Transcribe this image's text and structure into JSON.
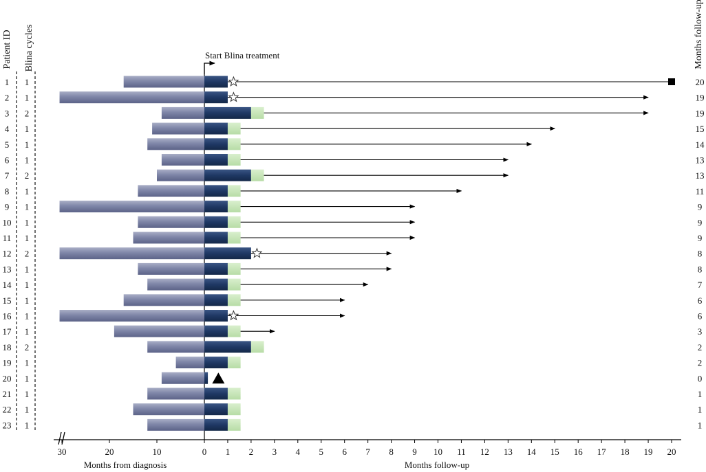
{
  "chart_data": {
    "type": "swimmer",
    "headers": {
      "patient_id": "Patient ID",
      "blina_cycles": "Blina cycles",
      "months_follow_up": "Months follow-up",
      "start_label": "Start Blina treatment"
    },
    "xlabel_left": "Months from diagnosis",
    "xlabel_right": "Months follow-up",
    "left_ticks": [
      "30",
      "20",
      "10",
      "0"
    ],
    "right_ticks": [
      "1",
      "2",
      "3",
      "4",
      "5",
      "6",
      "7",
      "8",
      "9",
      "10",
      "11",
      "12",
      "13",
      "14",
      "15",
      "16",
      "17",
      "18",
      "19",
      "20"
    ],
    "axis_break": "//",
    "xlim_left": [
      30,
      0
    ],
    "xlim_right": [
      0,
      20
    ],
    "series_colors": {
      "pre_treatment": "#7f86a8",
      "blina_treatment": "#1f3864",
      "post_treatment": "#c6e4b8",
      "follow_up": "#000000"
    },
    "patients": [
      {
        "id": "1",
        "cycles": "1",
        "diag": 17,
        "blina": 1,
        "post": 0,
        "marker_x": 1.25,
        "marker": "star",
        "follow_end": 20,
        "end": "square",
        "follow_label": "20"
      },
      {
        "id": "2",
        "cycles": "1",
        "diag": 30.5,
        "blina": 1,
        "post": 0,
        "marker_x": 1.25,
        "marker": "star",
        "follow_end": 19,
        "end": "arrow",
        "follow_label": "19"
      },
      {
        "id": "3",
        "cycles": "2",
        "diag": 9,
        "blina": 2,
        "post": 0.55,
        "marker_x": null,
        "marker": "",
        "follow_end": 19,
        "end": "arrow",
        "follow_label": "19"
      },
      {
        "id": "4",
        "cycles": "1",
        "diag": 11,
        "blina": 1,
        "post": 0.55,
        "marker_x": null,
        "marker": "",
        "follow_end": 15,
        "end": "arrow",
        "follow_label": "15"
      },
      {
        "id": "5",
        "cycles": "1",
        "diag": 12,
        "blina": 1,
        "post": 0.55,
        "marker_x": null,
        "marker": "",
        "follow_end": 14,
        "end": "arrow",
        "follow_label": "14"
      },
      {
        "id": "6",
        "cycles": "1",
        "diag": 9,
        "blina": 1,
        "post": 0.55,
        "marker_x": null,
        "marker": "",
        "follow_end": 13,
        "end": "arrow",
        "follow_label": "13"
      },
      {
        "id": "7",
        "cycles": "2",
        "diag": 10,
        "blina": 2,
        "post": 0.55,
        "marker_x": null,
        "marker": "",
        "follow_end": 13,
        "end": "arrow",
        "follow_label": "13"
      },
      {
        "id": "8",
        "cycles": "1",
        "diag": 14,
        "blina": 1,
        "post": 0.55,
        "marker_x": null,
        "marker": "",
        "follow_end": 11,
        "end": "arrow",
        "follow_label": "11"
      },
      {
        "id": "9",
        "cycles": "1",
        "diag": 30.5,
        "blina": 1,
        "post": 0.55,
        "marker_x": null,
        "marker": "",
        "follow_end": 9,
        "end": "arrow",
        "follow_label": "9"
      },
      {
        "id": "10",
        "cycles": "1",
        "diag": 14,
        "blina": 1,
        "post": 0.55,
        "marker_x": null,
        "marker": "",
        "follow_end": 9,
        "end": "arrow",
        "follow_label": "9"
      },
      {
        "id": "11",
        "cycles": "1",
        "diag": 15,
        "blina": 1,
        "post": 0.55,
        "marker_x": null,
        "marker": "",
        "follow_end": 9,
        "end": "arrow",
        "follow_label": "9"
      },
      {
        "id": "12",
        "cycles": "2",
        "diag": 30.5,
        "blina": 2,
        "post": 0,
        "marker_x": 2.25,
        "marker": "star",
        "follow_end": 8,
        "end": "arrow",
        "follow_label": "8"
      },
      {
        "id": "13",
        "cycles": "1",
        "diag": 14,
        "blina": 1,
        "post": 0.55,
        "marker_x": null,
        "marker": "",
        "follow_end": 8,
        "end": "arrow",
        "follow_label": "8"
      },
      {
        "id": "14",
        "cycles": "1",
        "diag": 12,
        "blina": 1,
        "post": 0.55,
        "marker_x": null,
        "marker": "",
        "follow_end": 7,
        "end": "arrow",
        "follow_label": "7"
      },
      {
        "id": "15",
        "cycles": "1",
        "diag": 17,
        "blina": 1,
        "post": 0.55,
        "marker_x": null,
        "marker": "",
        "follow_end": 6,
        "end": "arrow",
        "follow_label": "6"
      },
      {
        "id": "16",
        "cycles": "1",
        "diag": 30.5,
        "blina": 1,
        "post": 0,
        "marker_x": 1.25,
        "marker": "star",
        "follow_end": 6,
        "end": "arrow",
        "follow_label": "6"
      },
      {
        "id": "17",
        "cycles": "1",
        "diag": 19,
        "blina": 1,
        "post": 0.55,
        "marker_x": null,
        "marker": "",
        "follow_end": 3,
        "end": "arrow",
        "follow_label": "3"
      },
      {
        "id": "18",
        "cycles": "2",
        "diag": 12,
        "blina": 2,
        "post": 0.55,
        "marker_x": null,
        "marker": "",
        "follow_end": null,
        "end": "",
        "follow_label": "2"
      },
      {
        "id": "19",
        "cycles": "1",
        "diag": 6,
        "blina": 1,
        "post": 0.55,
        "marker_x": null,
        "marker": "",
        "follow_end": null,
        "end": "",
        "follow_label": "2"
      },
      {
        "id": "20",
        "cycles": "1",
        "diag": 9,
        "blina": 0.15,
        "post": 0,
        "marker_x": 0.6,
        "marker": "triangle",
        "follow_end": null,
        "end": "",
        "follow_label": "0"
      },
      {
        "id": "21",
        "cycles": "1",
        "diag": 12,
        "blina": 1,
        "post": 0.55,
        "marker_x": null,
        "marker": "",
        "follow_end": null,
        "end": "",
        "follow_label": "1"
      },
      {
        "id": "22",
        "cycles": "1",
        "diag": 15,
        "blina": 1,
        "post": 0.55,
        "marker_x": null,
        "marker": "",
        "follow_end": null,
        "end": "",
        "follow_label": "1"
      },
      {
        "id": "23",
        "cycles": "1",
        "diag": 12,
        "blina": 1,
        "post": 0.55,
        "marker_x": null,
        "marker": "",
        "follow_end": null,
        "end": "",
        "follow_label": "1"
      }
    ]
  }
}
